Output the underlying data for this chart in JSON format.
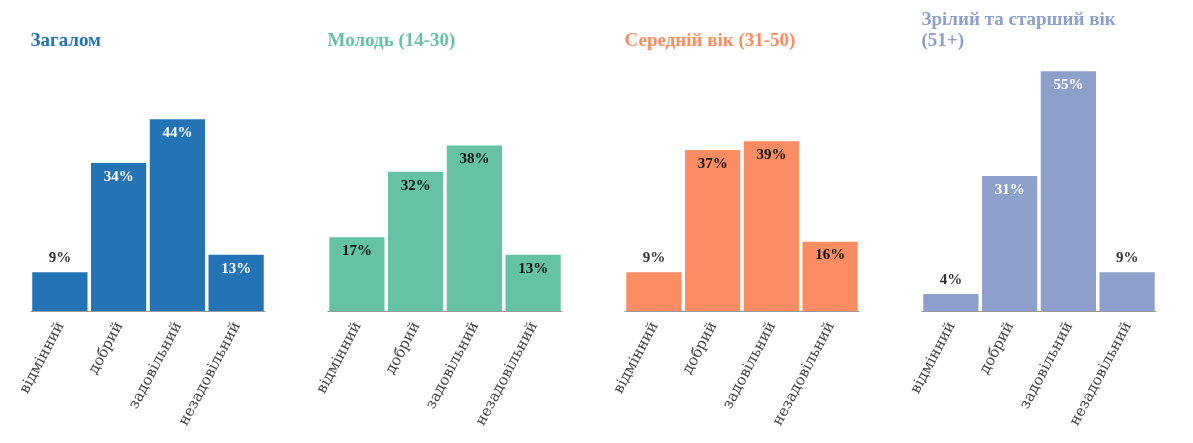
{
  "chart_data": [
    {
      "type": "bar",
      "title": "Загалом",
      "categories": [
        "відмінний",
        "добрий",
        "задовільний",
        "незадовільний"
      ],
      "values": [
        9,
        34,
        44,
        13
      ],
      "value_labels": [
        "9%",
        "34%",
        "44%",
        "13%"
      ],
      "color": "#2474b5",
      "tick_labels": "x"
    },
    {
      "type": "bar",
      "title": "Молодь (14-30)",
      "categories": [
        "відмінний",
        "добрий",
        "задовільний",
        "незадовільний"
      ],
      "values": [
        17,
        32,
        38,
        13
      ],
      "value_labels": [
        "17%",
        "32%",
        "38%",
        "13%"
      ],
      "color": "#66c2a5",
      "tick_labels": "x"
    },
    {
      "type": "bar",
      "title": "Середній вік (31-50)",
      "categories": [
        "відмінний",
        "добрий",
        "задовільний",
        "незадовільний"
      ],
      "values": [
        9,
        37,
        39,
        16
      ],
      "value_labels": [
        "9%",
        "37%",
        "39%",
        "16%"
      ],
      "color": "#fc8d62",
      "tick_labels": "x"
    },
    {
      "type": "bar",
      "title": "Зрілий та старший вік (51+)",
      "categories": [
        "відмінний",
        "добрий",
        "задовільний",
        "незадовільний"
      ],
      "values": [
        4,
        31,
        55,
        9
      ],
      "value_labels": [
        "4%",
        "31%",
        "55%",
        "9%"
      ],
      "color": "#8da0cb",
      "tick_labels": "x"
    }
  ]
}
